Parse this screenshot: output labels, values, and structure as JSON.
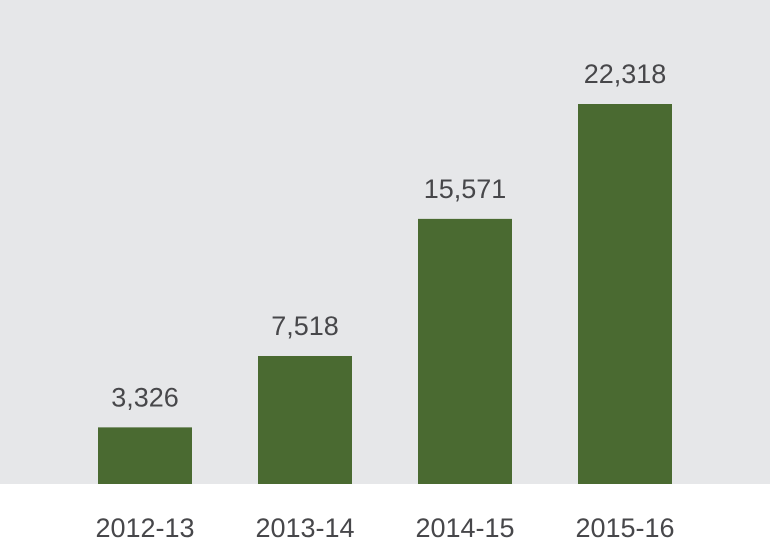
{
  "chart_data": {
    "type": "bar",
    "categories": [
      "2012-13",
      "2013-14",
      "2014-15",
      "2015-16"
    ],
    "values": [
      3326,
      7518,
      15571,
      22318
    ],
    "value_labels": [
      "3,326",
      "7,518",
      "15,571",
      "22,318"
    ],
    "color": "#4a6a31"
  }
}
